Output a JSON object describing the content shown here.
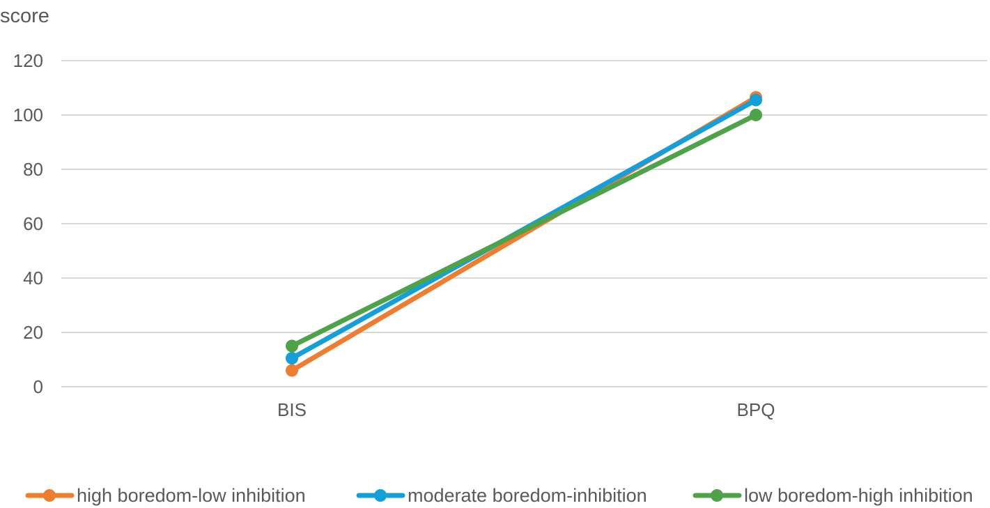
{
  "chart_data": {
    "type": "line",
    "title": "",
    "xlabel": "",
    "ylabel": "score",
    "categories": [
      "BIS",
      "BPQ"
    ],
    "ylim": [
      0,
      120
    ],
    "yticks": [
      0,
      20,
      40,
      60,
      80,
      100,
      120
    ],
    "grid": true,
    "legend_position": "bottom",
    "series": [
      {
        "name": "high boredom-low inhibition",
        "values": [
          6,
          106.5
        ],
        "color": "#ED7D31"
      },
      {
        "name": "moderate boredom-inhibition",
        "values": [
          10.5,
          105.5
        ],
        "color": "#169ED8"
      },
      {
        "name": "low boredom-high inhibition",
        "values": [
          15,
          100
        ],
        "color": "#4EA24A"
      }
    ]
  }
}
